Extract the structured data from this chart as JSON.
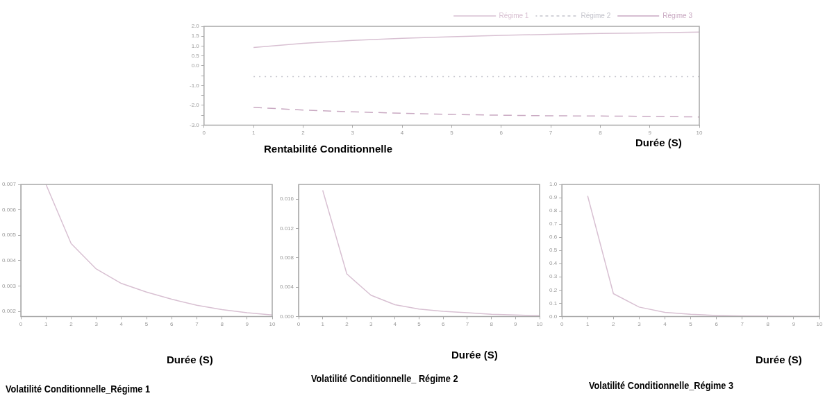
{
  "chart_data": [
    {
      "type": "line",
      "title": "Rentabilité Conditionnelle",
      "xlabel": "Durée (S)",
      "x": [
        1,
        2,
        3,
        4,
        5,
        6,
        7,
        8,
        9,
        10
      ],
      "xlim": [
        0,
        10
      ],
      "xticks": [
        0,
        1,
        2,
        3,
        4,
        5,
        6,
        7,
        8,
        9,
        10
      ],
      "ylim": [
        -3,
        2
      ],
      "yticks": [
        {
          "value": -3,
          "label": "-3.0"
        },
        {
          "value": -2.5,
          "label": null
        },
        {
          "value": -2,
          "label": "-2.0"
        },
        {
          "value": -1.5,
          "label": null
        },
        {
          "value": -1,
          "label": "-1.0"
        },
        {
          "value": -0.5,
          "label": null
        },
        {
          "value": 0,
          "label": "0.0"
        },
        {
          "value": 0.5,
          "label": "0.5"
        },
        {
          "value": 1,
          "label": "1.0"
        },
        {
          "value": 1.5,
          "label": "1.5"
        },
        {
          "value": 2,
          "label": "2.0"
        }
      ],
      "grid": false,
      "legend": "top right",
      "marker": "none",
      "series": [
        {
          "name": "Régime 1",
          "color": "#d8c0d2",
          "line_style": "solid",
          "values": [
            0.93,
            1.14,
            1.29,
            1.39,
            1.47,
            1.54,
            1.6,
            1.64,
            1.67,
            1.71
          ]
        },
        {
          "name": "Régime 2",
          "color": "#c4c4cc",
          "line_style": "dotted",
          "values": [
            -0.55,
            -0.55,
            -0.55,
            -0.55,
            -0.55,
            -0.55,
            -0.55,
            -0.55,
            -0.55,
            -0.55
          ]
        },
        {
          "name": "Régime 3",
          "color": "#c9a9c2",
          "line_style": "dashed",
          "values": [
            -2.1,
            -2.24,
            -2.33,
            -2.4,
            -2.46,
            -2.5,
            -2.53,
            -2.54,
            -2.56,
            -2.59
          ]
        }
      ]
    },
    {
      "type": "line",
      "title": "Volatilité Conditionnelle_Régime 1",
      "xlabel": "Durée (S)",
      "x": [
        1,
        2,
        3,
        4,
        5,
        6,
        7,
        8,
        9,
        10
      ],
      "xlim": [
        0,
        10
      ],
      "xticks": [
        0,
        1,
        2,
        3,
        4,
        5,
        6,
        7,
        8,
        9,
        10
      ],
      "ylim": [
        0.0018,
        0.007
      ],
      "yticks": [
        0.002,
        0.003,
        0.004,
        0.005,
        0.006,
        0.007
      ],
      "grid": false,
      "marker": "none",
      "series": [
        {
          "color": "#d8c0d2",
          "values": [
            0.007,
            0.00467,
            0.00367,
            0.0031,
            0.00276,
            0.00248,
            0.00224,
            0.00207,
            0.00195,
            0.00186
          ]
        }
      ]
    },
    {
      "type": "line",
      "title": "Volatilité Conditionnelle_ Régime 2",
      "xlabel": "Durée (S)",
      "x": [
        1,
        2,
        3,
        4,
        5,
        6,
        7,
        8,
        9,
        10
      ],
      "xlim": [
        0,
        10
      ],
      "xticks": [
        0,
        1,
        2,
        3,
        4,
        5,
        6,
        7,
        8,
        9,
        10
      ],
      "ylim": [
        0,
        0.018
      ],
      "yticks": [
        {
          "value": 0,
          "label": "0.000"
        },
        {
          "value": 0.004,
          "label": "0.004"
        },
        {
          "value": 0.008,
          "label": "0.008"
        },
        {
          "value": 0.012,
          "label": "0.012"
        },
        {
          "value": 0.016,
          "label": "0.016"
        }
      ],
      "grid": false,
      "marker": "none",
      "series": [
        {
          "color": "#d8c0d2",
          "values": [
            0.0172,
            0.0058,
            0.0029,
            0.0016,
            0.001,
            0.0007,
            0.0005,
            0.0003,
            0.0002,
            0.0001
          ]
        }
      ]
    },
    {
      "type": "line",
      "title": "Volatilité Conditionnelle_Régime 3",
      "xlabel": "Durée (S)",
      "x": [
        1,
        2,
        3,
        4,
        5,
        6,
        7,
        8,
        9,
        10
      ],
      "xlim": [
        0,
        10
      ],
      "xticks": [
        0,
        1,
        2,
        3,
        4,
        5,
        6,
        7,
        8,
        9,
        10
      ],
      "ylim": [
        0,
        1
      ],
      "yticks": [
        {
          "value": 0,
          "label": "0.0"
        },
        {
          "value": 0.1,
          "label": "0.1"
        },
        {
          "value": 0.2,
          "label": "0.2"
        },
        {
          "value": 0.3,
          "label": "0.3"
        },
        {
          "value": 0.4,
          "label": "0.4"
        },
        {
          "value": 0.5,
          "label": "0.5"
        },
        {
          "value": 0.6,
          "label": "0.6"
        },
        {
          "value": 0.7,
          "label": "0.7"
        },
        {
          "value": 0.8,
          "label": "0.8"
        },
        {
          "value": 0.9,
          "label": "0.9"
        },
        {
          "value": 1,
          "label": "1.0"
        }
      ],
      "grid": false,
      "marker": "none",
      "series": [
        {
          "color": "#d8c0d2",
          "values": [
            0.913,
            0.173,
            0.071,
            0.031,
            0.016,
            0.008,
            0.004,
            0.002,
            0.001,
            0
          ]
        }
      ]
    }
  ]
}
